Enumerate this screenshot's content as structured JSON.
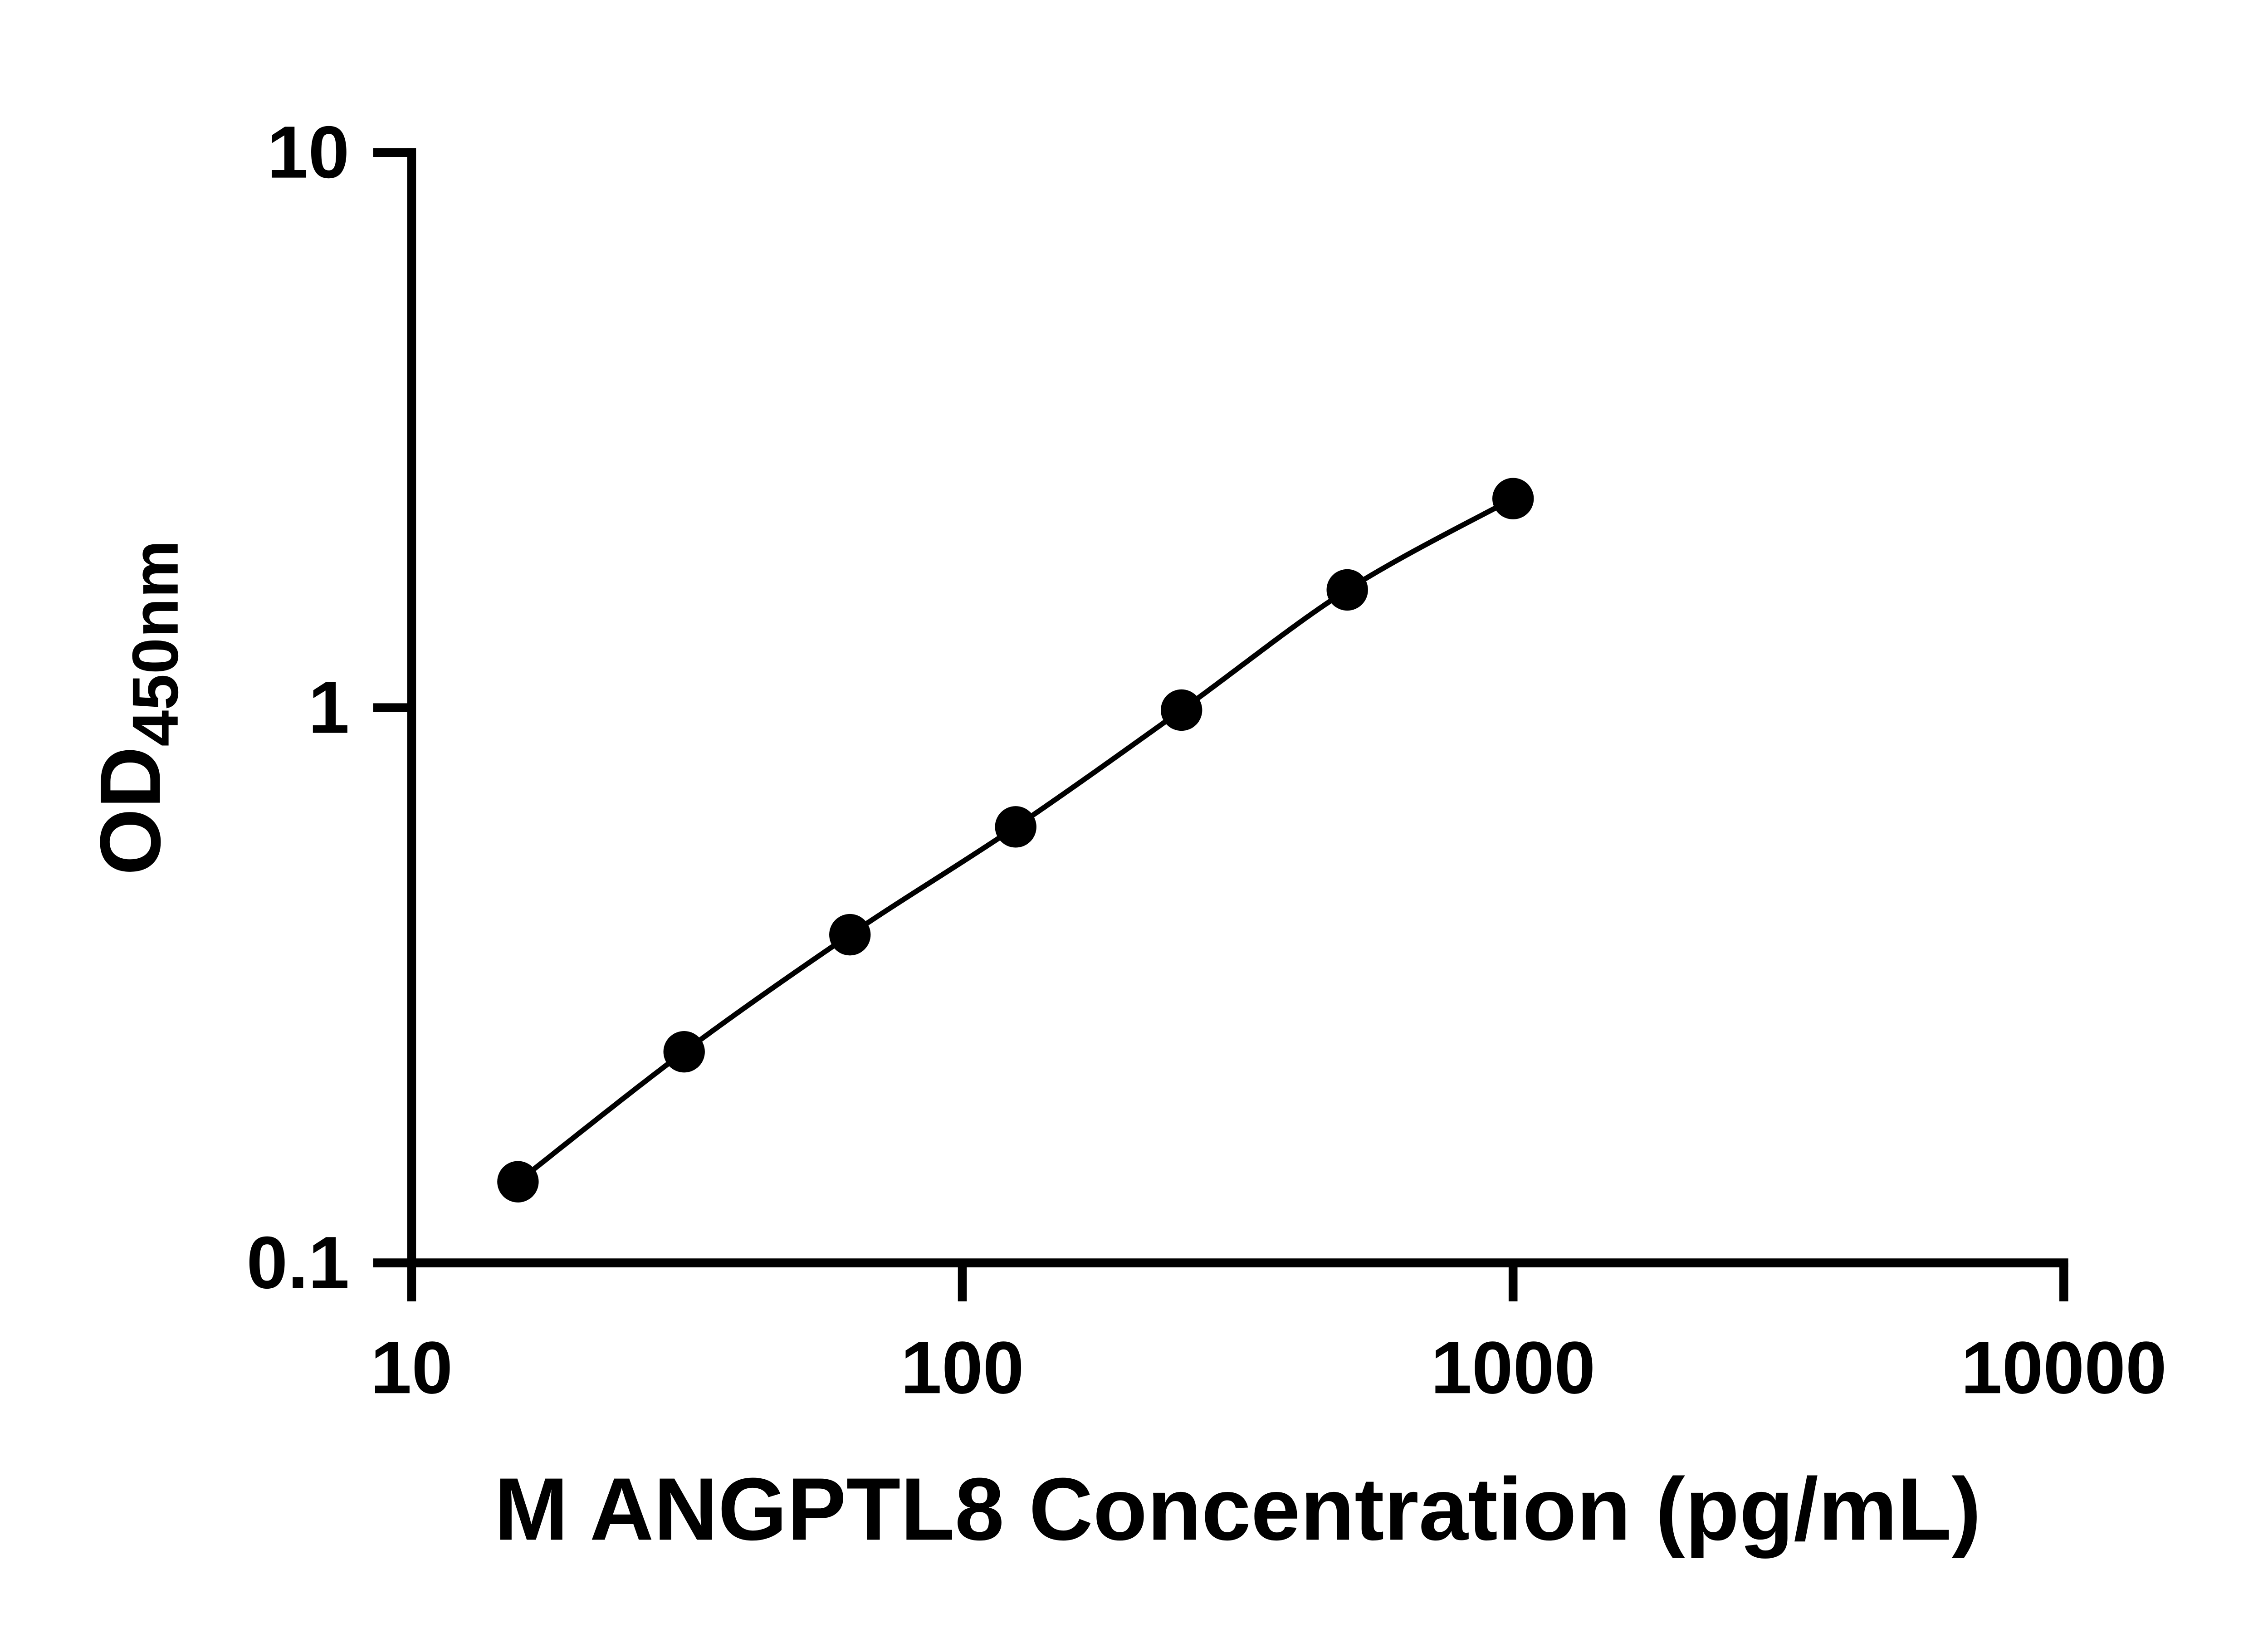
{
  "chart_data": {
    "type": "scatter",
    "title": "",
    "xlabel": "M ANGPTL8 Concentration (pg/mL)",
    "ylabel_main": "OD",
    "ylabel_sub": "450nm",
    "x_scale": "log",
    "y_scale": "log",
    "xlim": [
      10,
      10000
    ],
    "ylim": [
      0.1,
      10
    ],
    "x_ticks": [
      10,
      100,
      1000,
      10000
    ],
    "x_tick_labels": [
      "10",
      "100",
      "1000",
      "10000"
    ],
    "y_ticks": [
      0.1,
      1,
      10
    ],
    "y_tick_labels": [
      "0.1",
      "1",
      "10"
    ],
    "x": [
      15.6,
      31.25,
      62.5,
      125,
      250,
      500,
      1000
    ],
    "y": [
      0.14,
      0.24,
      0.39,
      0.61,
      0.99,
      1.63,
      2.38
    ],
    "grid": false,
    "legend": null,
    "line_color": "#000000",
    "marker_color": "#000000",
    "marker_shape": "circle",
    "background_color": "#ffffff"
  }
}
